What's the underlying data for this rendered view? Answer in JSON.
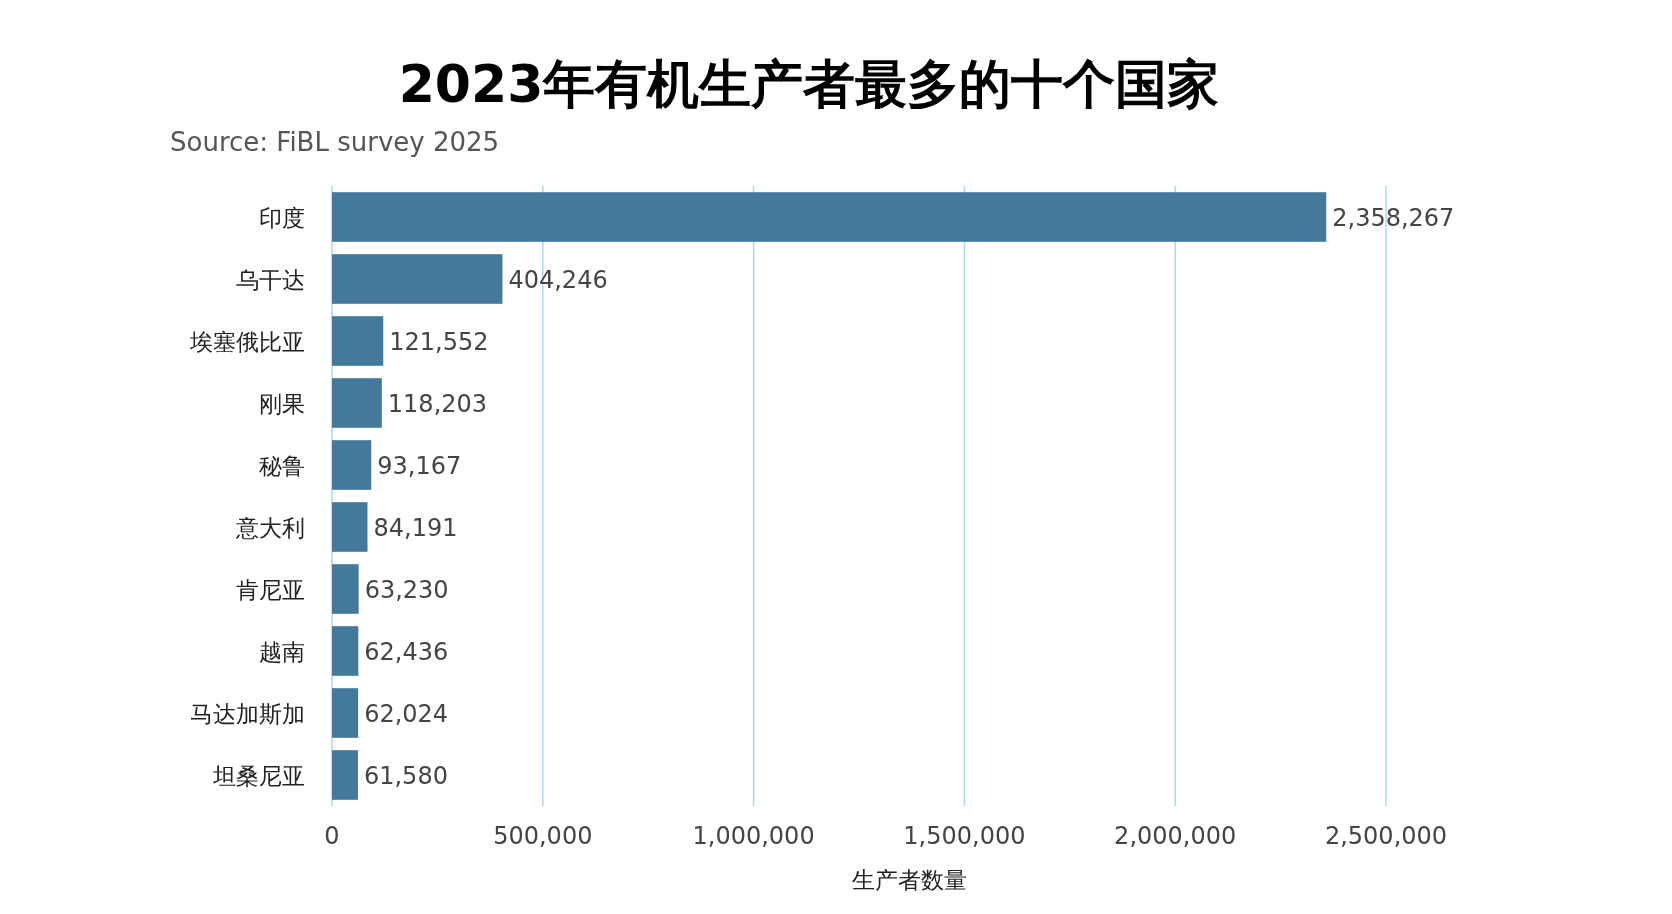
{
  "chart_data": {
    "type": "bar",
    "orientation": "horizontal",
    "title": "2023年有机生产者最多的十个国家",
    "annotations": [
      "Source: FiBL survey 2025"
    ],
    "xlabel": "生产者数量",
    "categories": [
      "印度",
      "乌干达",
      "埃塞俄比亚",
      "刚果",
      "秘鲁",
      "意大利",
      "肯尼亚",
      "越南",
      "马达加斯加",
      "坦桑尼亚"
    ],
    "values": [
      2358267,
      404246,
      121552,
      118203,
      93167,
      84191,
      63230,
      62436,
      62024,
      61580
    ],
    "color": "#44799b",
    "xlim": [
      0,
      2500000
    ],
    "xticks": [
      0,
      {
        "value": 500000,
        "label": "500,000"
      },
      {
        "value": 1000000,
        "label": "1,000,000"
      },
      {
        "value": 1500000,
        "label": "1,500,000"
      },
      {
        "value": 2000000,
        "label": "2,000,000"
      },
      {
        "value": 2500000,
        "label": "2,500,000"
      }
    ],
    "grid": "x",
    "value_labels": [
      "2,358,267",
      "404,246",
      "121,552",
      "118,203",
      "93,167",
      "84,191",
      "63,230",
      "62,436",
      "62,024",
      "61,580"
    ]
  }
}
